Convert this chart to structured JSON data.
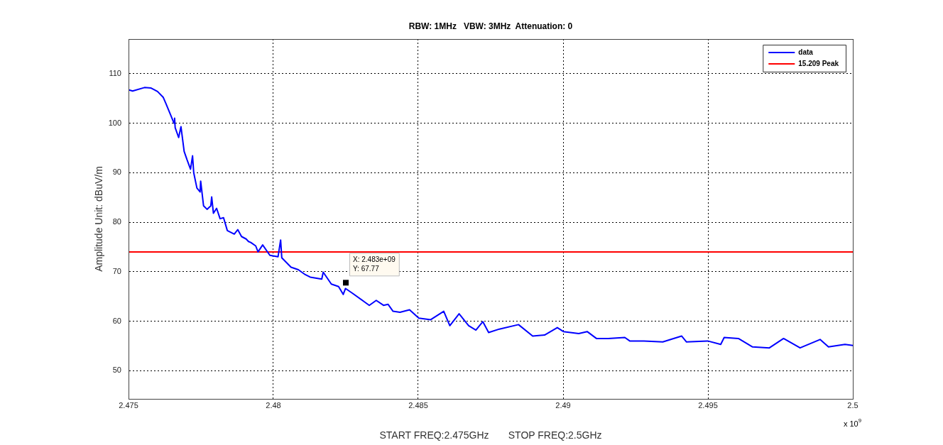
{
  "chart_data": {
    "type": "line",
    "title": "RBW: 1MHz   VBW: 3MHz  Attenuation: 0",
    "xlabel": "START FREQ:2.475GHz       STOP FREQ:2.5GHz",
    "ylabel": "Amplitude Unit: dBuV/m",
    "xlim": [
      2.475,
      2.5
    ],
    "xticks": [
      2.475,
      2.48,
      2.485,
      2.49,
      2.495,
      2.5
    ],
    "ylim": [
      44.3,
      117
    ],
    "yticks": [
      50,
      60,
      70,
      80,
      90,
      100,
      110
    ],
    "grid": true,
    "legend": "top right",
    "line_style": "solid",
    "marker": "none",
    "annotations": [
      "x 10$^{9}$",
      {
        "text": "X: 2.483e+09\nY: 67.77",
        "x": 2.4825,
        "y": 67.77
      }
    ],
    "series": [
      {
        "name": "data",
        "color": "#0000ff",
        "x": [
          2.47502,
          2.47514,
          2.47555,
          2.47578,
          2.476,
          2.4762,
          2.47628,
          2.47645,
          2.47657,
          2.47659,
          2.47661,
          2.47673,
          2.47681,
          2.47692,
          2.47702,
          2.47714,
          2.47721,
          2.47725,
          2.47736,
          2.47747,
          2.47749,
          2.47759,
          2.47771,
          2.47784,
          2.47787,
          2.47793,
          2.47804,
          2.47816,
          2.47828,
          2.47841,
          2.47865,
          2.47877,
          2.4789,
          2.47906,
          2.47914,
          2.47922,
          2.47939,
          2.47947,
          2.47963,
          2.47988,
          2.48016,
          2.48025,
          2.48029,
          2.48061,
          2.48086,
          2.4811,
          2.48127,
          2.48167,
          2.48172,
          2.482,
          2.48225,
          2.48241,
          2.48249,
          2.48274,
          2.48314,
          2.48331,
          2.48355,
          2.4838,
          2.48396,
          2.48413,
          2.48437,
          2.4847,
          2.48502,
          2.48543,
          2.48588,
          2.48609,
          2.48641,
          2.48674,
          2.48699,
          2.48723,
          2.48743,
          2.4878,
          2.48846,
          2.48895,
          2.48936,
          2.4898,
          2.49001,
          2.49054,
          2.49083,
          2.49115,
          2.49156,
          2.49213,
          2.4923,
          2.49279,
          2.49344,
          2.49409,
          2.49426,
          2.49499,
          2.49544,
          2.49556,
          2.49605,
          2.49654,
          2.49712,
          2.49761,
          2.49818,
          2.49887,
          2.49916,
          2.49973,
          2.5
        ],
        "values": [
          106.7,
          106.5,
          107.2,
          107.1,
          106.4,
          105.2,
          104.1,
          101.7,
          100.0,
          101.0,
          99.1,
          97.1,
          99.3,
          94.3,
          92.6,
          90.7,
          93.4,
          90.0,
          86.9,
          86.1,
          88.3,
          83.3,
          82.6,
          83.3,
          85.1,
          81.8,
          82.8,
          80.7,
          80.9,
          78.3,
          77.6,
          78.5,
          77.1,
          76.6,
          76.1,
          75.9,
          75.2,
          74.0,
          75.4,
          73.3,
          73.0,
          76.4,
          72.8,
          70.9,
          70.4,
          69.4,
          68.9,
          68.5,
          69.9,
          67.5,
          67.0,
          65.4,
          66.6,
          65.6,
          63.9,
          63.2,
          64.2,
          63.2,
          63.4,
          62.0,
          61.8,
          62.3,
          60.6,
          60.3,
          62.0,
          59.1,
          61.5,
          59.1,
          58.2,
          59.9,
          57.7,
          58.4,
          59.3,
          57.0,
          57.2,
          58.7,
          57.9,
          57.5,
          57.9,
          56.5,
          56.5,
          56.7,
          56.0,
          56.0,
          55.8,
          57.0,
          55.8,
          56.0,
          55.3,
          56.7,
          56.5,
          54.8,
          54.6,
          56.5,
          54.6,
          56.3,
          54.8,
          55.3,
          55.1
        ]
      },
      {
        "name": "15.209 Peak",
        "color": "#ff0000",
        "x": [
          2.475,
          2.5
        ],
        "values": [
          74,
          74
        ]
      }
    ]
  }
}
